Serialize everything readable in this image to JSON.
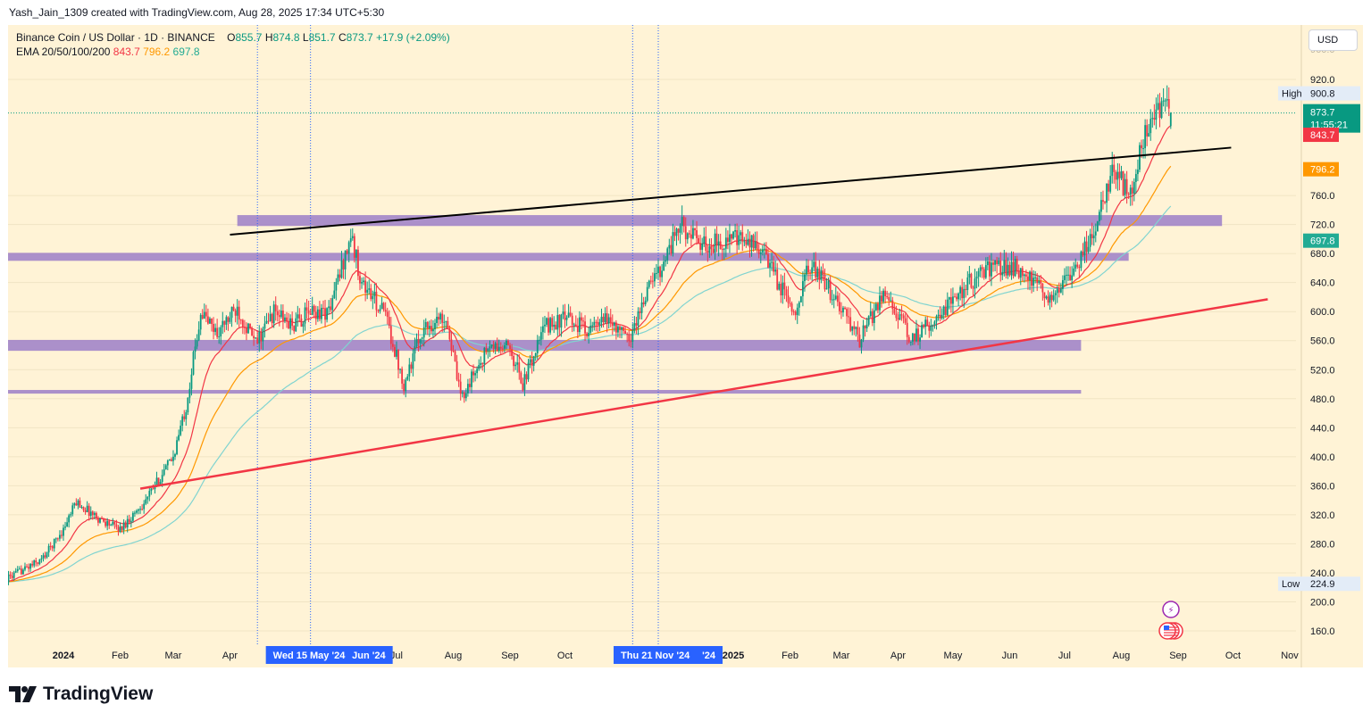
{
  "header": {
    "attribution": "Yash_Jain_1309 created with TradingView.com, Aug 28, 2025 17:34 UTC+5:30"
  },
  "legend": {
    "symbol": "Binance Coin / US Dollar · 1D · BINANCE",
    "open_label": "O",
    "open": "855.7",
    "high_label": "H",
    "high": "874.8",
    "low_label": "L",
    "low": "851.7",
    "close_label": "C",
    "close": "873.7",
    "change": "+17.9 (+2.09%)",
    "ema_label": "EMA 20/50/100/200",
    "ema20": "843.7",
    "ema50": "796.2",
    "ema100": "697.8"
  },
  "currency": "USD",
  "footer": {
    "brand": "TradingView"
  },
  "colors": {
    "background": "#fff3d6",
    "up": "#089981",
    "down": "#f23645",
    "ema20": "#f23645",
    "ema50": "#ff9800",
    "ema100": "#80d4d0",
    "zone": "#9c7ec8",
    "support_line": "#f23645",
    "resistance_line": "#000000",
    "highlight": "#2962ff"
  },
  "chart_data": {
    "type": "candlestick",
    "title": "Binance Coin / US Dollar · 1D · BINANCE",
    "ylim": [
      130,
      960
    ],
    "y_ticks": [
      160,
      200,
      240,
      280,
      320,
      360,
      400,
      440,
      480,
      520,
      560,
      600,
      640,
      680,
      720,
      760,
      920
    ],
    "x_range": [
      "2023-12-01",
      "2025-12-01"
    ],
    "x_ticks": [
      {
        "label": "2024",
        "date": "2024-01-01"
      },
      {
        "label": "Feb",
        "date": "2024-02-01"
      },
      {
        "label": "Mar",
        "date": "2024-03-01"
      },
      {
        "label": "Apr",
        "date": "2024-04-01"
      },
      {
        "label": "Jul",
        "date": "2024-07-01"
      },
      {
        "label": "Aug",
        "date": "2024-08-01"
      },
      {
        "label": "Sep",
        "date": "2024-09-01"
      },
      {
        "label": "Oct",
        "date": "2024-10-01"
      },
      {
        "label": "2025",
        "date": "2025-01-01"
      },
      {
        "label": "Feb",
        "date": "2025-02-01"
      },
      {
        "label": "Mar",
        "date": "2025-03-01"
      },
      {
        "label": "Apr",
        "date": "2025-04-01"
      },
      {
        "label": "May",
        "date": "2025-05-01"
      },
      {
        "label": "Jun",
        "date": "2025-06-01"
      },
      {
        "label": "Jul",
        "date": "2025-07-01"
      },
      {
        "label": "Aug",
        "date": "2025-08-01"
      },
      {
        "label": "Sep",
        "date": "2025-09-01"
      },
      {
        "label": "Oct",
        "date": "2025-10-01"
      },
      {
        "label": "Nov",
        "date": "2025-11-01"
      }
    ],
    "highlighted_dates": [
      {
        "label": "Wed 15 May '24",
        "date": "2024-05-15",
        "suffix": "Jun '24"
      },
      {
        "label": "Thu 21 Nov '24",
        "date": "2024-11-21",
        "suffix": "'24"
      }
    ],
    "price_keypoints": [
      [
        "2023-12-01",
        232
      ],
      [
        "2023-12-20",
        258
      ],
      [
        "2024-01-01",
        300
      ],
      [
        "2024-01-08",
        338
      ],
      [
        "2024-01-20",
        315
      ],
      [
        "2024-02-01",
        300
      ],
      [
        "2024-02-15",
        340
      ],
      [
        "2024-03-01",
        400
      ],
      [
        "2024-03-08",
        470
      ],
      [
        "2024-03-16",
        600
      ],
      [
        "2024-03-25",
        570
      ],
      [
        "2024-04-05",
        605
      ],
      [
        "2024-04-15",
        555
      ],
      [
        "2024-04-25",
        600
      ],
      [
        "2024-05-05",
        580
      ],
      [
        "2024-05-15",
        600
      ],
      [
        "2024-05-25",
        600
      ],
      [
        "2024-06-06",
        705
      ],
      [
        "2024-06-12",
        640
      ],
      [
        "2024-06-25",
        595
      ],
      [
        "2024-07-05",
        500
      ],
      [
        "2024-07-15",
        575
      ],
      [
        "2024-07-28",
        595
      ],
      [
        "2024-08-05",
        480
      ],
      [
        "2024-08-20",
        550
      ],
      [
        "2024-09-01",
        550
      ],
      [
        "2024-09-08",
        500
      ],
      [
        "2024-09-20",
        580
      ],
      [
        "2024-10-01",
        590
      ],
      [
        "2024-10-15",
        575
      ],
      [
        "2024-10-25",
        590
      ],
      [
        "2024-11-05",
        560
      ],
      [
        "2024-11-15",
        630
      ],
      [
        "2024-11-22",
        660
      ],
      [
        "2024-12-03",
        720
      ],
      [
        "2024-12-15",
        690
      ],
      [
        "2024-12-31",
        700
      ],
      [
        "2025-01-15",
        690
      ],
      [
        "2025-02-03",
        600
      ],
      [
        "2025-02-12",
        665
      ],
      [
        "2025-02-25",
        620
      ],
      [
        "2025-03-11",
        560
      ],
      [
        "2025-03-25",
        630
      ],
      [
        "2025-04-08",
        560
      ],
      [
        "2025-04-25",
        600
      ],
      [
        "2025-05-10",
        640
      ],
      [
        "2025-05-20",
        660
      ],
      [
        "2025-06-05",
        660
      ],
      [
        "2025-06-22",
        620
      ],
      [
        "2025-07-05",
        650
      ],
      [
        "2025-07-18",
        720
      ],
      [
        "2025-07-28",
        800
      ],
      [
        "2025-08-05",
        760
      ],
      [
        "2025-08-15",
        850
      ],
      [
        "2025-08-22",
        880
      ],
      [
        "2025-08-28",
        874
      ]
    ],
    "ema": [
      {
        "name": "EMA 20",
        "last": 843.7
      },
      {
        "name": "EMA 50",
        "last": 796.2
      },
      {
        "name": "EMA 100",
        "last": 697.8
      }
    ],
    "zones": [
      {
        "low": 718,
        "high": 733,
        "from": "2024-04-05",
        "to": "2025-09-25"
      },
      {
        "low": 670,
        "high": 681,
        "from": "2023-12-01",
        "to": "2025-08-05"
      },
      {
        "low": 546,
        "high": 561,
        "from": "2023-12-01",
        "to": "2025-07-10"
      },
      {
        "low": 487,
        "high": 492,
        "from": "2023-12-01",
        "to": "2025-07-10"
      }
    ],
    "trendlines": [
      {
        "name": "resistance",
        "from": [
          "2024-04-01",
          706
        ],
        "to": [
          "2025-09-30",
          826
        ]
      },
      {
        "name": "support",
        "from": [
          "2024-02-12",
          356
        ],
        "to": [
          "2025-10-20",
          617
        ]
      }
    ],
    "price_labels": {
      "high_label": "High",
      "high": "900.8",
      "last": "873.7",
      "countdown": "11:55:21",
      "ema20": "843.7",
      "ema50": "796.2",
      "ema100": "697.8",
      "low_label": "Low",
      "low": "224.9"
    }
  }
}
